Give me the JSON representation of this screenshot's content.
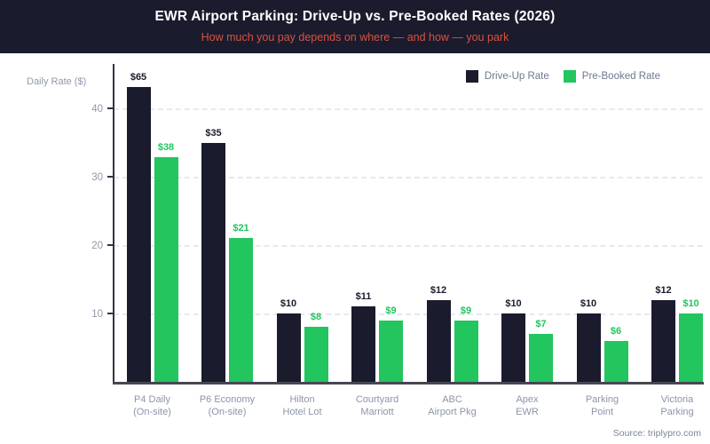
{
  "header": {
    "title": "EWR Airport Parking: Drive-Up vs. Pre-Booked Rates (2026)",
    "subtitle": "How much you pay depends on where — and how — you park"
  },
  "colors": {
    "header_bg": "#1b1b2e",
    "title_text": "#ffffff",
    "subtitle_text": "#d9523b",
    "driveup_bar": "#1b1b2e",
    "prebooked_bar": "#22c55e",
    "grid": "#e7e9ef",
    "axis_text": "#8f98aa",
    "legend_text": "#6e798c",
    "source_text": "#7b8598"
  },
  "chart_data": {
    "type": "bar",
    "title": "EWR Airport Parking: Drive-Up vs. Pre-Booked Rates (2026)",
    "subtitle": "How much you pay depends on where — and how — you park",
    "ylabel": "Daily Rate ($)",
    "xlabel": "",
    "ylim": [
      0,
      46.5
    ],
    "y_ticks": [
      10,
      20,
      30,
      40
    ],
    "grid": "horizontal-dashed",
    "legend_position": "top-right",
    "categories": [
      [
        "P4 Daily",
        "(On-site)"
      ],
      [
        "P6 Economy",
        "(On-site)"
      ],
      [
        "Hilton",
        "Hotel Lot"
      ],
      [
        "Courtyard",
        "Marriott"
      ],
      [
        "ABC",
        "Airport Pkg"
      ],
      [
        "Apex",
        "EWR"
      ],
      [
        "Parking",
        "Point"
      ],
      [
        "Victoria",
        "Parking"
      ]
    ],
    "series": [
      {
        "name": "Drive-Up Rate",
        "color": "#1b1b2e",
        "values": [
          65,
          35,
          10,
          11,
          12,
          10,
          10,
          12
        ],
        "labels": [
          "$65",
          "$35",
          "$10",
          "$11",
          "$12",
          "$10",
          "$10",
          "$12"
        ],
        "drawn_values": [
          43.1,
          35,
          10,
          11,
          12,
          10,
          10,
          12
        ]
      },
      {
        "name": "Pre-Booked Rate",
        "color": "#22c55e",
        "values": [
          38,
          21,
          8,
          9,
          9,
          7,
          6,
          10
        ],
        "labels": [
          "$38",
          "$21",
          "$8",
          "$9",
          "$9",
          "$7",
          "$6",
          "$10"
        ],
        "drawn_values": [
          32.9,
          21,
          8,
          9,
          9,
          7,
          6,
          10
        ]
      }
    ],
    "display_note": "First-group bars are drawn visually shorter than their labeled $ values (axis capped near $46)."
  },
  "footer": {
    "source": "Source: triplypro.com"
  }
}
